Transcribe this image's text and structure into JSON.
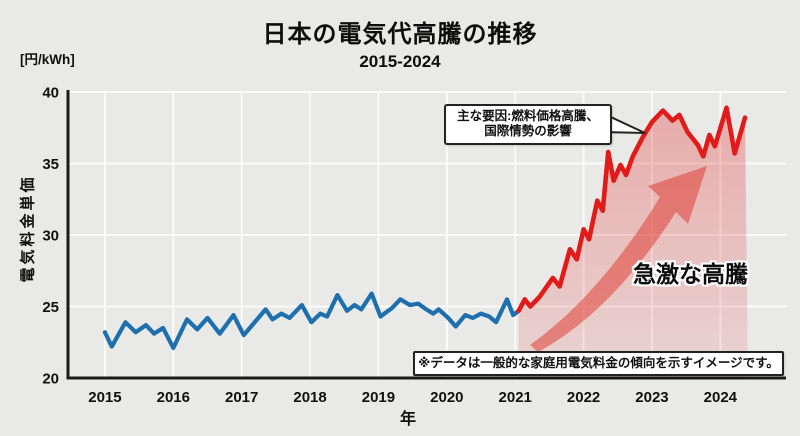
{
  "page": {
    "title": "日本の電気代高騰の推移",
    "subtitle": "2015-2024"
  },
  "chart_data": {
    "type": "line",
    "title": "日本の電気代高騰の推移",
    "subtitle": "2015-2024",
    "xlabel": "年",
    "ylabel": "電気料金単価",
    "unit_label": "[円/kWh]",
    "xlim": [
      2014.46,
      2024.96
    ],
    "ylim": [
      20,
      40
    ],
    "grid": true,
    "x_ticks": [
      2015,
      2016,
      2017,
      2018,
      2019,
      2020,
      2021,
      2022,
      2023,
      2024
    ],
    "y_ticks": [
      20,
      25,
      30,
      35,
      40
    ],
    "series": [
      {
        "id": "stable-period-line",
        "color": "#1e6fae",
        "width": 4.2,
        "area": false,
        "points": [
          [
            2015.0,
            23.2
          ],
          [
            2015.1,
            22.2
          ],
          [
            2015.3,
            23.9
          ],
          [
            2015.45,
            23.2
          ],
          [
            2015.6,
            23.7
          ],
          [
            2015.72,
            23.1
          ],
          [
            2015.85,
            23.5
          ],
          [
            2016.0,
            22.1
          ],
          [
            2016.2,
            24.1
          ],
          [
            2016.35,
            23.4
          ],
          [
            2016.5,
            24.2
          ],
          [
            2016.68,
            23.1
          ],
          [
            2016.88,
            24.4
          ],
          [
            2017.03,
            23.0
          ],
          [
            2017.35,
            24.8
          ],
          [
            2017.45,
            24.1
          ],
          [
            2017.58,
            24.5
          ],
          [
            2017.7,
            24.2
          ],
          [
            2017.88,
            25.1
          ],
          [
            2018.02,
            23.9
          ],
          [
            2018.15,
            24.5
          ],
          [
            2018.25,
            24.3
          ],
          [
            2018.4,
            25.8
          ],
          [
            2018.54,
            24.7
          ],
          [
            2018.65,
            25.1
          ],
          [
            2018.75,
            24.8
          ],
          [
            2018.9,
            25.9
          ],
          [
            2019.03,
            24.3
          ],
          [
            2019.2,
            24.9
          ],
          [
            2019.32,
            25.5
          ],
          [
            2019.46,
            25.1
          ],
          [
            2019.58,
            25.2
          ],
          [
            2019.7,
            24.8
          ],
          [
            2019.8,
            24.5
          ],
          [
            2019.88,
            24.8
          ],
          [
            2020.02,
            24.2
          ],
          [
            2020.13,
            23.6
          ],
          [
            2020.27,
            24.4
          ],
          [
            2020.38,
            24.2
          ],
          [
            2020.5,
            24.5
          ],
          [
            2020.62,
            24.3
          ],
          [
            2020.72,
            23.9
          ],
          [
            2020.88,
            25.5
          ],
          [
            2020.97,
            24.4
          ],
          [
            2021.05,
            24.7
          ]
        ]
      },
      {
        "id": "surge-period-line",
        "color": "#e11a1a",
        "width": 4.6,
        "area": true,
        "points": [
          [
            2021.05,
            24.7
          ],
          [
            2021.14,
            25.5
          ],
          [
            2021.22,
            25.0
          ],
          [
            2021.36,
            25.7
          ],
          [
            2021.55,
            27.0
          ],
          [
            2021.65,
            26.4
          ],
          [
            2021.8,
            29.0
          ],
          [
            2021.9,
            28.3
          ],
          [
            2022.0,
            30.4
          ],
          [
            2022.08,
            29.7
          ],
          [
            2022.2,
            32.4
          ],
          [
            2022.28,
            31.7
          ],
          [
            2022.36,
            35.8
          ],
          [
            2022.44,
            33.8
          ],
          [
            2022.54,
            34.9
          ],
          [
            2022.62,
            34.2
          ],
          [
            2022.72,
            35.5
          ],
          [
            2022.86,
            36.8
          ],
          [
            2023.0,
            37.9
          ],
          [
            2023.16,
            38.7
          ],
          [
            2023.3,
            38.0
          ],
          [
            2023.4,
            38.4
          ],
          [
            2023.52,
            37.2
          ],
          [
            2023.67,
            36.3
          ],
          [
            2023.75,
            35.5
          ],
          [
            2023.84,
            37.0
          ],
          [
            2023.92,
            36.2
          ],
          [
            2024.09,
            38.9
          ],
          [
            2024.21,
            35.7
          ],
          [
            2024.36,
            38.2
          ]
        ]
      }
    ],
    "annotations": {
      "callout_line1": "主な要因:燃料価格高騰、",
      "callout_line2": "国際情勢の影響",
      "arrow_label": "急激な高騰",
      "note": "※データは一般的な家庭用電気料金の傾向を示すイメージです。"
    }
  },
  "colors": {
    "background": "#e9e9e7",
    "gridline": "#fafaf8",
    "axis": "#1a1a1a",
    "text": "#111111",
    "blue_line": "#1e6fae",
    "red_line": "#e11a1a",
    "red_area": "#e11a1a",
    "arrow": "#e03a30"
  }
}
